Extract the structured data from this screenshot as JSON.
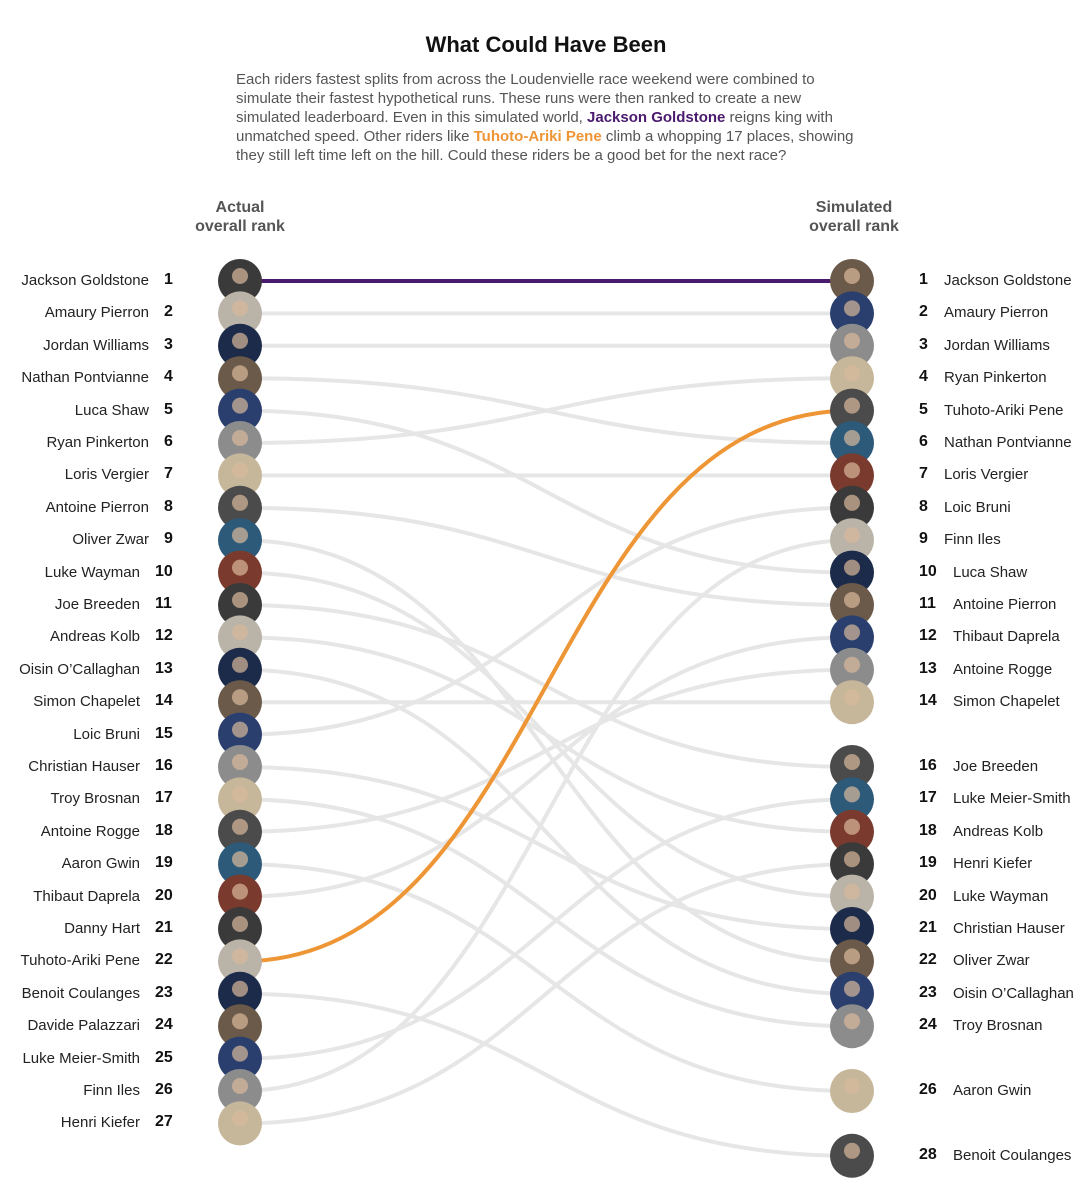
{
  "title": "What Could Have Been",
  "subtitle": {
    "part1": "Each riders fastest splits from across the Loudenvielle race weekend were combined to simulate their fastest hypothetical runs. These runs were then ranked to create a new simulated leaderboard. Even in this simulated world, ",
    "highlight1": "Jackson Goldstone",
    "part2": " reigns king with unmatched speed. Other riders like ",
    "highlight2": "Tuhoto-Ariki Pene",
    "part3": " climb a whopping 17 places, showing they still left time left on the hill. Could these riders be a good bet for the next race?"
  },
  "left_header": "Actual\noverall rank",
  "right_header": "Simulated\noverall rank",
  "colors": {
    "highlight_primary": "#4a1a6e",
    "highlight_secondary": "#ee9535",
    "other": "#e6e6e6"
  },
  "chart_data": {
    "type": "slope",
    "title": "What Could Have Been",
    "xlabel": "",
    "ylabel": "",
    "left_label": "Actual overall rank",
    "right_label": "Simulated overall rank",
    "riders": [
      {
        "name": "Jackson Goldstone",
        "actual": 1,
        "simulated": 1,
        "highlight": "primary"
      },
      {
        "name": "Amaury Pierron",
        "actual": 2,
        "simulated": 2
      },
      {
        "name": "Jordan Williams",
        "actual": 3,
        "simulated": 3
      },
      {
        "name": "Nathan Pontvianne",
        "actual": 4,
        "simulated": 6
      },
      {
        "name": "Luca Shaw",
        "actual": 5,
        "simulated": 10
      },
      {
        "name": "Ryan Pinkerton",
        "actual": 6,
        "simulated": 4
      },
      {
        "name": "Loris Vergier",
        "actual": 7,
        "simulated": 7
      },
      {
        "name": "Antoine Pierron",
        "actual": 8,
        "simulated": 11
      },
      {
        "name": "Oliver Zwar",
        "actual": 9,
        "simulated": 22
      },
      {
        "name": "Luke Wayman",
        "actual": 10,
        "simulated": 20
      },
      {
        "name": "Joe Breeden",
        "actual": 11,
        "simulated": 16
      },
      {
        "name": "Andreas Kolb",
        "actual": 12,
        "simulated": 18
      },
      {
        "name": "Oisin O’Callaghan",
        "actual": 13,
        "simulated": 23
      },
      {
        "name": "Simon Chapelet",
        "actual": 14,
        "simulated": 14
      },
      {
        "name": "Loic Bruni",
        "actual": 15,
        "simulated": 8
      },
      {
        "name": "Christian Hauser",
        "actual": 16,
        "simulated": 21
      },
      {
        "name": "Troy Brosnan",
        "actual": 17,
        "simulated": 24
      },
      {
        "name": "Antoine Rogge",
        "actual": 18,
        "simulated": 13
      },
      {
        "name": "Aaron Gwin",
        "actual": 19,
        "simulated": 26
      },
      {
        "name": "Thibaut Daprela",
        "actual": 20,
        "simulated": 12
      },
      {
        "name": "Danny Hart",
        "actual": 21,
        "simulated": null
      },
      {
        "name": "Tuhoto-Ariki Pene",
        "actual": 22,
        "simulated": 5,
        "highlight": "secondary"
      },
      {
        "name": "Benoit Coulanges",
        "actual": 23,
        "simulated": 28
      },
      {
        "name": "Davide Palazzari",
        "actual": 24,
        "simulated": null
      },
      {
        "name": "Luke Meier-Smith",
        "actual": 25,
        "simulated": 17
      },
      {
        "name": "Finn Iles",
        "actual": 26,
        "simulated": 9
      },
      {
        "name": "Henri Kiefer",
        "actual": 27,
        "simulated": 19
      }
    ]
  }
}
